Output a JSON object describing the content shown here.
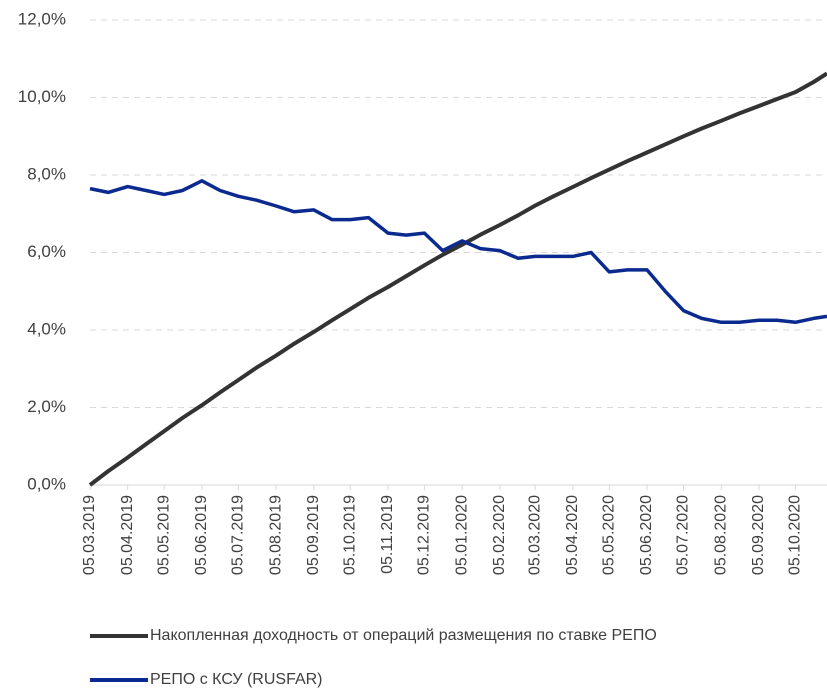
{
  "chart_data": {
    "type": "line",
    "x": [
      "05.03.2019",
      "20.03.2019",
      "05.04.2019",
      "20.04.2019",
      "05.05.2019",
      "20.05.2019",
      "05.06.2019",
      "20.06.2019",
      "05.07.2019",
      "20.07.2019",
      "05.08.2019",
      "20.08.2019",
      "05.09.2019",
      "20.09.2019",
      "05.10.2019",
      "20.10.2019",
      "05.11.2019",
      "20.11.2019",
      "05.12.2019",
      "20.12.2019",
      "05.01.2020",
      "20.01.2020",
      "05.02.2020",
      "20.02.2020",
      "05.03.2020",
      "20.03.2020",
      "05.04.2020",
      "20.04.2020",
      "05.05.2020",
      "20.05.2020",
      "05.06.2020",
      "20.06.2020",
      "05.07.2020",
      "20.07.2020",
      "05.08.2020",
      "20.08.2020",
      "05.09.2020",
      "20.09.2020",
      "05.10.2020",
      "20.10.2020",
      "31.10.2020"
    ],
    "series": [
      {
        "name": "Накопленная доходность от операций размещения по ставке РЕПО",
        "color": "#333333",
        "values": [
          0,
          0.36,
          0.71,
          1.05,
          1.39,
          1.73,
          2.06,
          2.39,
          2.71,
          3.03,
          3.34,
          3.65,
          3.95,
          4.25,
          4.54,
          4.83,
          5.11,
          5.39,
          5.67,
          5.94,
          6.2,
          6.46,
          6.71,
          6.96,
          7.21,
          7.45,
          7.69,
          7.92,
          8.14,
          8.36,
          8.58,
          8.79,
          9.0,
          9.2,
          9.4,
          9.59,
          9.78,
          9.96,
          10.14,
          10.4,
          10.62
        ]
      },
      {
        "name": "РЕПО с КСУ (RUSFAR)",
        "color": "#0b2a8f",
        "values": [
          7.65,
          7.55,
          7.7,
          7.6,
          7.5,
          7.6,
          7.85,
          7.6,
          7.45,
          7.35,
          7.2,
          7.05,
          7.1,
          6.85,
          6.85,
          6.9,
          6.5,
          6.45,
          6.5,
          6.05,
          6.3,
          6.1,
          6.05,
          5.85,
          5.9,
          5.9,
          5.9,
          6.0,
          5.5,
          5.55,
          5.55,
          5.0,
          4.5,
          4.3,
          4.2,
          4.2,
          4.25,
          4.25,
          4.2,
          4.3,
          4.35
        ]
      }
    ],
    "xlim": [
      "05.03.2019",
      "31.10.2020"
    ],
    "xticks": [
      "05.03.2019",
      "05.04.2019",
      "05.05.2019",
      "05.06.2019",
      "05.07.2019",
      "05.08.2019",
      "05.09.2019",
      "05.10.2019",
      "05.11.2019",
      "05.12.2019",
      "05.01.2020",
      "05.02.2020",
      "05.03.2020",
      "05.04.2020",
      "05.05.2020",
      "05.06.2020",
      "05.07.2020",
      "05.08.2020",
      "05.09.2020",
      "05.10.2020"
    ],
    "ylim": [
      0,
      12
    ],
    "yticks": [
      {
        "value": 0,
        "label": "0,0%"
      },
      {
        "value": 2,
        "label": "2,0%"
      },
      {
        "value": 4,
        "label": "4,0%"
      },
      {
        "value": 6,
        "label": "6,0%"
      },
      {
        "value": 8,
        "label": "8,0%"
      },
      {
        "value": 10,
        "label": "10,0%"
      },
      {
        "value": 12,
        "label": "12,0%"
      }
    ],
    "grid": true,
    "legend": "bottom"
  }
}
